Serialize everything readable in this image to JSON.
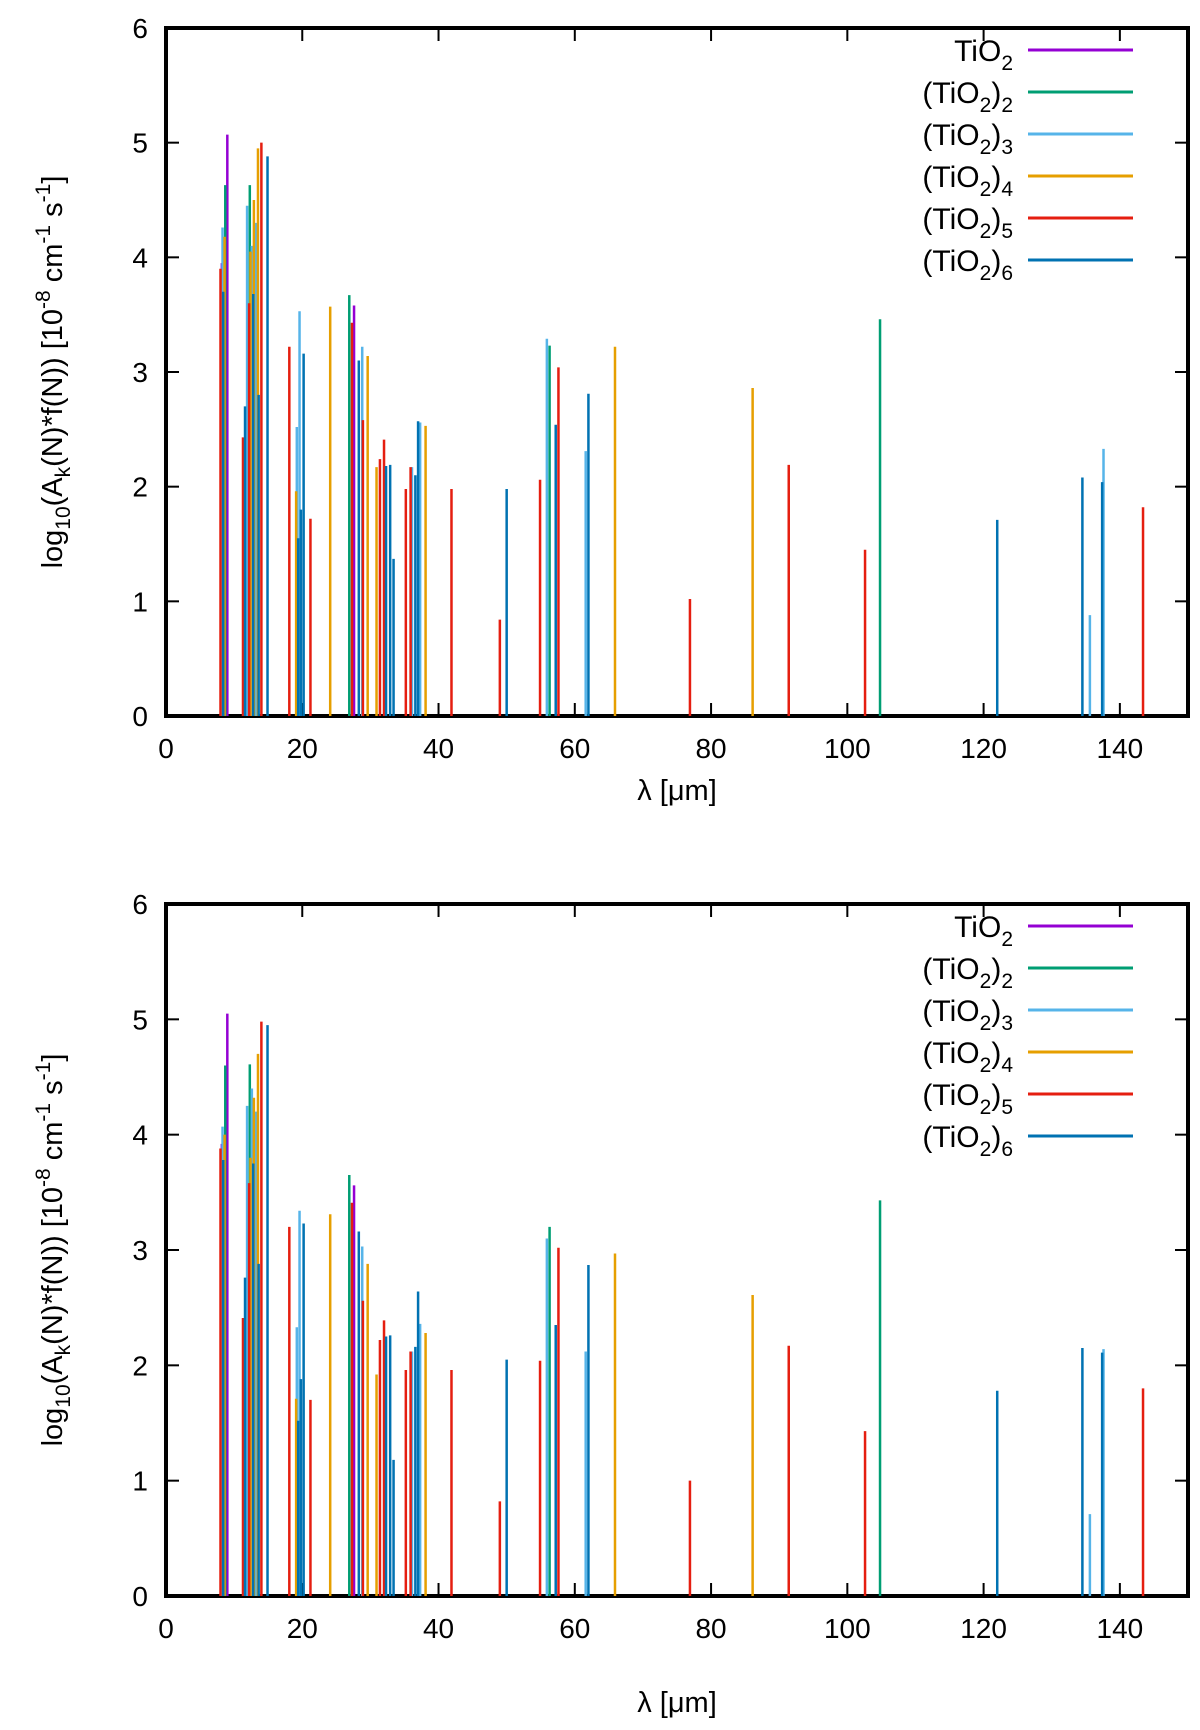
{
  "chart_data": [
    {
      "type": "bar",
      "panel": "top",
      "xlabel": "λ [μm]",
      "ylabel": "log10(Ak(N)*f(N)) [10-8 cm-1 s-1]",
      "ylabel_parts": [
        "log",
        "10",
        "(A",
        "k",
        "(N)*f(N)) [10",
        "-8",
        " cm",
        "-1",
        " s",
        "-1",
        "]"
      ],
      "xlim": [
        0,
        150
      ],
      "ylim": [
        0,
        6
      ],
      "xticks": [
        0,
        20,
        40,
        60,
        80,
        100,
        120,
        140
      ],
      "yticks": [
        0,
        1,
        2,
        3,
        4,
        5,
        6
      ],
      "legend_position": "top-right",
      "series": [
        {
          "name": "TiO2",
          "base": "TiO",
          "sub": "2",
          "outer": "",
          "color": "#9400d3",
          "points": [
            [
              8.2,
              3.95
            ],
            [
              9.0,
              5.07
            ],
            [
              27.6,
              3.58
            ]
          ]
        },
        {
          "name": "(TiO2)2",
          "base": "(TiO",
          "sub": "2",
          "outer": "2",
          "color": "#009e73",
          "points": [
            [
              8.7,
              4.63
            ],
            [
              12.3,
              4.63
            ],
            [
              26.9,
              3.67
            ],
            [
              56.3,
              3.23
            ],
            [
              104.8,
              3.46
            ]
          ]
        },
        {
          "name": "(TiO2)3",
          "base": "(TiO",
          "sub": "2",
          "outer": "3",
          "color": "#56b4e9",
          "points": [
            [
              8.3,
              4.26
            ],
            [
              11.9,
              4.45
            ],
            [
              12.6,
              4.1
            ],
            [
              13.2,
              4.3
            ],
            [
              19.2,
              2.52
            ],
            [
              19.6,
              3.53
            ],
            [
              28.8,
              3.22
            ],
            [
              36.1,
              2.17
            ],
            [
              37.3,
              2.56
            ],
            [
              55.9,
              3.29
            ],
            [
              61.6,
              2.31
            ],
            [
              135.6,
              0.88
            ],
            [
              137.6,
              2.33
            ]
          ]
        },
        {
          "name": "(TiO2)4",
          "base": "(TiO",
          "sub": "2",
          "outer": "4",
          "color": "#e69f00",
          "points": [
            [
              8.6,
              4.18
            ],
            [
              12.4,
              4.05
            ],
            [
              12.9,
              4.5
            ],
            [
              13.5,
              4.95
            ],
            [
              19.1,
              1.96
            ],
            [
              24.1,
              3.57
            ],
            [
              29.6,
              3.14
            ],
            [
              30.9,
              2.17
            ],
            [
              38.1,
              2.53
            ],
            [
              65.9,
              3.22
            ],
            [
              86.1,
              2.86
            ]
          ]
        },
        {
          "name": "(TiO2)5",
          "base": "(TiO",
          "sub": "2",
          "outer": "5",
          "color": "#e51e10",
          "points": [
            [
              8.0,
              3.9
            ],
            [
              11.3,
              2.43
            ],
            [
              12.2,
              3.6
            ],
            [
              14.0,
              5.0
            ],
            [
              18.1,
              3.22
            ],
            [
              21.2,
              1.72
            ],
            [
              27.3,
              3.43
            ],
            [
              28.9,
              2.58
            ],
            [
              31.4,
              2.24
            ],
            [
              32.0,
              2.41
            ],
            [
              35.2,
              1.98
            ],
            [
              35.9,
              2.17
            ],
            [
              41.9,
              1.98
            ],
            [
              49.0,
              0.84
            ],
            [
              54.9,
              2.06
            ],
            [
              57.6,
              3.04
            ],
            [
              76.9,
              1.02
            ],
            [
              91.4,
              2.19
            ],
            [
              102.6,
              1.45
            ],
            [
              143.4,
              1.82
            ]
          ]
        },
        {
          "name": "(TiO2)6",
          "base": "(TiO",
          "sub": "2",
          "outer": "6",
          "color": "#0072b2",
          "points": [
            [
              8.4,
              3.7
            ],
            [
              11.6,
              2.7
            ],
            [
              12.8,
              3.68
            ],
            [
              13.6,
              2.8
            ],
            [
              14.9,
              4.88
            ],
            [
              19.4,
              1.55
            ],
            [
              19.8,
              1.8
            ],
            [
              20.2,
              3.16
            ],
            [
              28.3,
              3.1
            ],
            [
              32.3,
              2.18
            ],
            [
              32.9,
              2.19
            ],
            [
              33.4,
              1.37
            ],
            [
              36.6,
              2.1
            ],
            [
              37.0,
              2.57
            ],
            [
              50.0,
              1.98
            ],
            [
              57.2,
              2.54
            ],
            [
              62.0,
              2.81
            ],
            [
              122.0,
              1.71
            ],
            [
              134.5,
              2.08
            ],
            [
              137.4,
              2.04
            ]
          ]
        }
      ]
    },
    {
      "type": "bar",
      "panel": "bottom",
      "xlabel": "λ [μm]",
      "ylabel": "log10(Ak(N)*f(N)) [10-8 cm-1 s-1]",
      "ylabel_parts": [
        "log",
        "10",
        "(A",
        "k",
        "(N)*f(N)) [10",
        "-8",
        " cm",
        "-1",
        " s",
        "-1",
        "]"
      ],
      "xlim": [
        0,
        150
      ],
      "ylim": [
        0,
        6
      ],
      "xticks": [
        0,
        20,
        40,
        60,
        80,
        100,
        120,
        140
      ],
      "yticks": [
        0,
        1,
        2,
        3,
        4,
        5,
        6
      ],
      "legend_position": "top-right",
      "series": [
        {
          "name": "TiO2",
          "base": "TiO",
          "sub": "2",
          "outer": "",
          "color": "#9400d3",
          "points": [
            [
              8.2,
              3.92
            ],
            [
              9.0,
              5.05
            ],
            [
              27.6,
              3.56
            ]
          ]
        },
        {
          "name": "(TiO2)2",
          "base": "(TiO",
          "sub": "2",
          "outer": "2",
          "color": "#009e73",
          "points": [
            [
              8.7,
              4.6
            ],
            [
              12.3,
              4.61
            ],
            [
              26.9,
              3.65
            ],
            [
              56.3,
              3.2
            ],
            [
              104.8,
              3.43
            ]
          ]
        },
        {
          "name": "(TiO2)3",
          "base": "(TiO",
          "sub": "2",
          "outer": "3",
          "color": "#56b4e9",
          "points": [
            [
              8.3,
              4.07
            ],
            [
              11.9,
              4.25
            ],
            [
              12.6,
              4.4
            ],
            [
              13.2,
              4.2
            ],
            [
              19.2,
              2.33
            ],
            [
              19.6,
              3.34
            ],
            [
              28.8,
              3.03
            ],
            [
              36.1,
              2.12
            ],
            [
              37.3,
              2.36
            ],
            [
              55.9,
              3.1
            ],
            [
              61.6,
              2.12
            ],
            [
              135.6,
              0.71
            ],
            [
              137.6,
              2.14
            ]
          ]
        },
        {
          "name": "(TiO2)4",
          "base": "(TiO",
          "sub": "2",
          "outer": "4",
          "color": "#e69f00",
          "points": [
            [
              8.6,
              4.0
            ],
            [
              12.4,
              3.8
            ],
            [
              12.9,
              4.32
            ],
            [
              13.5,
              4.7
            ],
            [
              19.1,
              1.71
            ],
            [
              24.1,
              3.31
            ],
            [
              29.6,
              2.88
            ],
            [
              30.9,
              1.92
            ],
            [
              38.1,
              2.28
            ],
            [
              65.9,
              2.97
            ],
            [
              86.1,
              2.61
            ]
          ]
        },
        {
          "name": "(TiO2)5",
          "base": "(TiO",
          "sub": "2",
          "outer": "5",
          "color": "#e51e10",
          "points": [
            [
              8.0,
              3.88
            ],
            [
              11.3,
              2.41
            ],
            [
              12.2,
              3.58
            ],
            [
              14.0,
              4.98
            ],
            [
              18.1,
              3.2
            ],
            [
              21.2,
              1.7
            ],
            [
              27.3,
              3.41
            ],
            [
              28.9,
              2.56
            ],
            [
              31.4,
              2.22
            ],
            [
              32.0,
              2.39
            ],
            [
              35.2,
              1.96
            ],
            [
              35.9,
              2.12
            ],
            [
              41.9,
              1.96
            ],
            [
              49.0,
              0.82
            ],
            [
              54.9,
              2.04
            ],
            [
              57.6,
              3.02
            ],
            [
              76.9,
              1.0
            ],
            [
              91.4,
              2.17
            ],
            [
              102.6,
              1.43
            ],
            [
              143.4,
              1.8
            ]
          ]
        },
        {
          "name": "(TiO2)6",
          "base": "(TiO",
          "sub": "2",
          "outer": "6",
          "color": "#0072b2",
          "points": [
            [
              8.4,
              3.78
            ],
            [
              11.6,
              2.76
            ],
            [
              12.8,
              3.75
            ],
            [
              13.6,
              2.88
            ],
            [
              14.9,
              4.95
            ],
            [
              19.4,
              1.52
            ],
            [
              19.8,
              1.88
            ],
            [
              20.2,
              3.23
            ],
            [
              28.3,
              3.16
            ],
            [
              32.3,
              2.25
            ],
            [
              32.9,
              2.26
            ],
            [
              33.4,
              1.18
            ],
            [
              36.6,
              2.16
            ],
            [
              37.0,
              2.64
            ],
            [
              50.0,
              2.05
            ],
            [
              57.2,
              2.35
            ],
            [
              62.0,
              2.87
            ],
            [
              122.0,
              1.78
            ],
            [
              134.5,
              2.15
            ],
            [
              137.4,
              2.11
            ]
          ]
        }
      ]
    }
  ]
}
